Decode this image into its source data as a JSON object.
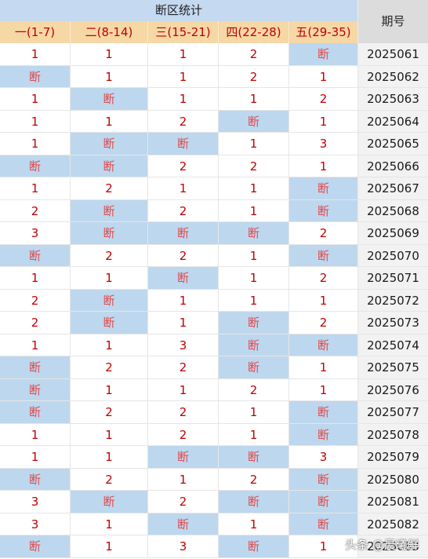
{
  "header": {
    "title": "断区统计",
    "period_label": "期号",
    "columns": [
      "一(1-7)",
      "二(8-14)",
      "三(15-21)",
      "四(22-28)",
      "五(29-35)"
    ]
  },
  "break_text": "断",
  "rows": [
    {
      "values": [
        "1",
        "1",
        "1",
        "2",
        "断"
      ],
      "period": "2025061"
    },
    {
      "values": [
        "断",
        "1",
        "1",
        "2",
        "1"
      ],
      "period": "2025062"
    },
    {
      "values": [
        "1",
        "断",
        "1",
        "1",
        "2"
      ],
      "period": "2025063"
    },
    {
      "values": [
        "1",
        "1",
        "2",
        "断",
        "1"
      ],
      "period": "2025064"
    },
    {
      "values": [
        "1",
        "断",
        "断",
        "1",
        "3"
      ],
      "period": "2025065"
    },
    {
      "values": [
        "断",
        "断",
        "2",
        "2",
        "1"
      ],
      "period": "2025066"
    },
    {
      "values": [
        "1",
        "2",
        "1",
        "1",
        "断"
      ],
      "period": "2025067"
    },
    {
      "values": [
        "2",
        "断",
        "2",
        "1",
        "断"
      ],
      "period": "2025068"
    },
    {
      "values": [
        "3",
        "断",
        "断",
        "断",
        "2"
      ],
      "period": "2025069"
    },
    {
      "values": [
        "断",
        "2",
        "2",
        "1",
        "断"
      ],
      "period": "2025070"
    },
    {
      "values": [
        "1",
        "1",
        "断",
        "1",
        "2"
      ],
      "period": "2025071"
    },
    {
      "values": [
        "2",
        "断",
        "1",
        "1",
        "1"
      ],
      "period": "2025072"
    },
    {
      "values": [
        "2",
        "断",
        "1",
        "断",
        "2"
      ],
      "period": "2025073"
    },
    {
      "values": [
        "1",
        "1",
        "3",
        "断",
        "断"
      ],
      "period": "2025074"
    },
    {
      "values": [
        "断",
        "2",
        "2",
        "断",
        "1"
      ],
      "period": "2025075"
    },
    {
      "values": [
        "断",
        "1",
        "1",
        "2",
        "1"
      ],
      "period": "2025076"
    },
    {
      "values": [
        "断",
        "2",
        "2",
        "1",
        "断"
      ],
      "period": "2025077"
    },
    {
      "values": [
        "1",
        "1",
        "2",
        "1",
        "断"
      ],
      "period": "2025078"
    },
    {
      "values": [
        "1",
        "1",
        "断",
        "断",
        "3"
      ],
      "period": "2025079"
    },
    {
      "values": [
        "断",
        "2",
        "1",
        "2",
        "断"
      ],
      "period": "2025080"
    },
    {
      "values": [
        "3",
        "断",
        "2",
        "断",
        "断"
      ],
      "period": "2025081"
    },
    {
      "values": [
        "3",
        "1",
        "断",
        "1",
        "断"
      ],
      "period": "2025082"
    },
    {
      "values": [
        "断",
        "1",
        "3",
        "断",
        "1"
      ],
      "period": "2025083"
    }
  ],
  "watermark": "头条 @晨曦鲜",
  "colors": {
    "title_bg": "#c5d9f1",
    "header_bg": "#f6d7a6",
    "break_bg": "#bdd7ee",
    "text_red": "#c00000",
    "period_bg": "#f2f2f2"
  }
}
